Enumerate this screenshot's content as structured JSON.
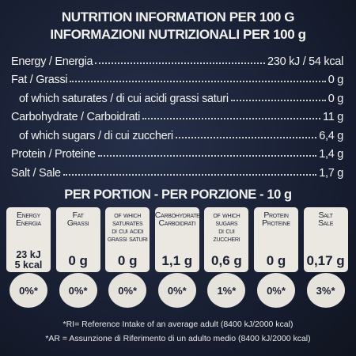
{
  "header": {
    "title": "NUTRITION INFORMATION PER 100 G",
    "subtitle": "INFORMAZIONI NUTRIZIONALI PER 100 g"
  },
  "table": {
    "rows": [
      [
        "Energy / Energia",
        "230 kJ / 54 kcal"
      ],
      [
        "Fat / Grassi",
        "0 g"
      ],
      [
        "of which saturates / di cui acidi grassi saturi",
        "0 g"
      ],
      [
        "Carbohydrate / Carboidrati",
        "11 g"
      ],
      [
        "of which sugars / di cui zuccheri",
        "6,4 g"
      ],
      [
        "Protein / Proteine",
        "1,4 g"
      ],
      [
        "Salt / Sale",
        "1,7 g"
      ]
    ]
  },
  "portion": {
    "title": "PER PORTION - PER PORZIONE - 10 g",
    "cards": [
      {
        "label": [
          "Energy",
          "Energia"
        ],
        "value": [
          "23 kJ",
          "5 kcal"
        ],
        "percent": "0%*"
      },
      {
        "label": [
          "Fat",
          "Grassi"
        ],
        "value": [
          "0 g"
        ],
        "percent": "0%*"
      },
      {
        "label": [
          "of which",
          "saturates",
          "di cui acidi",
          "grassi saturi"
        ],
        "value": [
          "0 g"
        ],
        "percent": "0%*"
      },
      {
        "label": [
          "Carbohydrate",
          "Carboidrati"
        ],
        "value": [
          "1,1 g"
        ],
        "percent": "0%*"
      },
      {
        "label": [
          "of which",
          "sugars",
          "di cui zuccheri"
        ],
        "value": [
          "0,6 g"
        ],
        "percent": "1%*"
      },
      {
        "label": [
          "Protein",
          "Proteine"
        ],
        "value": [
          "0 g"
        ],
        "percent": "0%*"
      },
      {
        "label": [
          "Salt",
          "Sale"
        ],
        "value": [
          "0,17 g"
        ],
        "percent": "3%*"
      }
    ]
  },
  "footnotes": [
    "*RI= Reference Intake of an average adult (8400 kJ/2000 kcal)",
    "*AR = Assunzione di Riferimento di un adulto medio (8400 kJ/2000 kcal)"
  ]
}
